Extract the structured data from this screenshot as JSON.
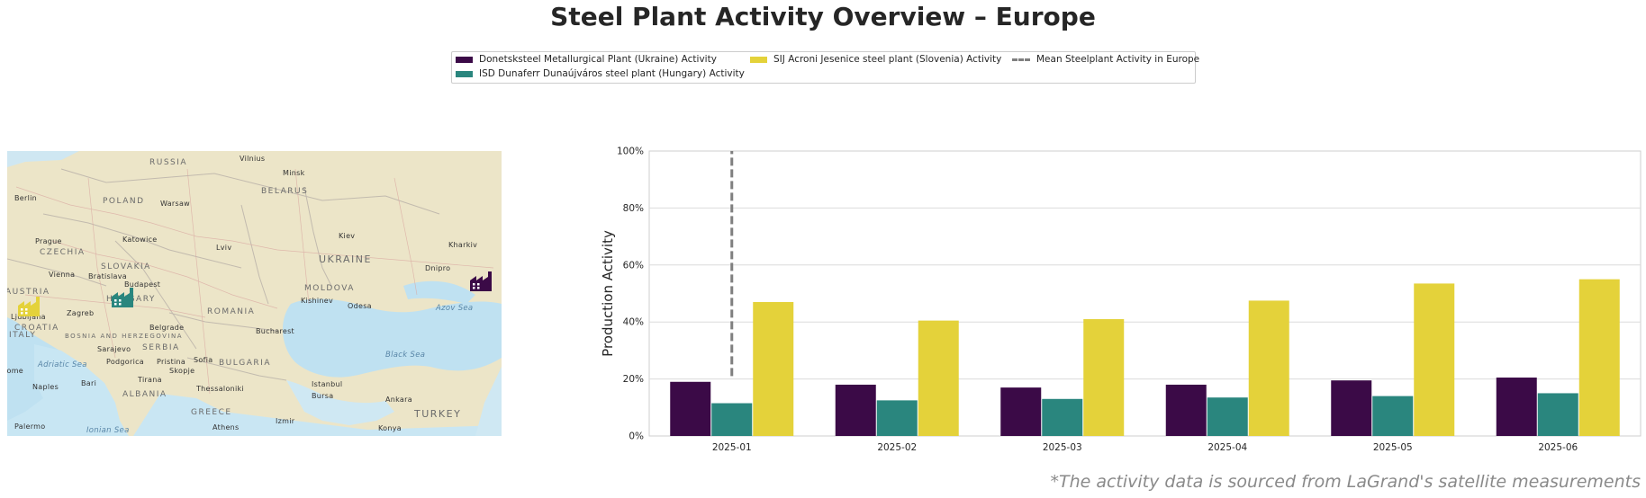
{
  "title": "Steel Plant Activity Overview – Europe",
  "footnote": "*The activity data is sourced from LaGrand's satellite measurements",
  "legend": [
    {
      "label": "Donetsksteel Metallurgical Plant (Ukraine) Activity",
      "color": "#3b0a47",
      "kind": "bar"
    },
    {
      "label": "ISD Dunaferr Dunaújváros steel plant (Hungary) Activity",
      "color": "#2a867e",
      "kind": "bar"
    },
    {
      "label": "SIJ Acroni Jesenice steel plant (Slovenia) Activity",
      "color": "#e4d23a",
      "kind": "bar"
    },
    {
      "label": "Mean Steelplant Activity in Europe",
      "color": "#7f7f7f",
      "kind": "dash"
    }
  ],
  "map": {
    "labels": [
      {
        "text": "RUSSIA",
        "kind": "country"
      },
      {
        "text": "Vilnius",
        "kind": "city"
      },
      {
        "text": "Minsk",
        "kind": "city"
      },
      {
        "text": "BELARUS",
        "kind": "country"
      },
      {
        "text": "Berlin",
        "kind": "city"
      },
      {
        "text": "POLAND",
        "kind": "country"
      },
      {
        "text": "Warsaw",
        "kind": "city"
      },
      {
        "text": "Katowice",
        "kind": "city"
      },
      {
        "text": "Lviv",
        "kind": "city"
      },
      {
        "text": "Kiev",
        "kind": "city"
      },
      {
        "text": "Kharkiv",
        "kind": "city"
      },
      {
        "text": "Prague",
        "kind": "city"
      },
      {
        "text": "CZECHIA",
        "kind": "country"
      },
      {
        "text": "UKRAINE",
        "kind": "country"
      },
      {
        "text": "SLOVAKIA",
        "kind": "country"
      },
      {
        "text": "Vienna",
        "kind": "city"
      },
      {
        "text": "Bratislava",
        "kind": "city"
      },
      {
        "text": "Budapest",
        "kind": "city"
      },
      {
        "text": "Dnipro",
        "kind": "city"
      },
      {
        "text": "AUSTRIA",
        "kind": "country"
      },
      {
        "text": "HUNGARY",
        "kind": "country"
      },
      {
        "text": "MOLDOVA",
        "kind": "country"
      },
      {
        "text": "Kishinev",
        "kind": "city"
      },
      {
        "text": "Odesa",
        "kind": "city"
      },
      {
        "text": "Azov Sea",
        "kind": "sea"
      },
      {
        "text": "Ljubljana",
        "kind": "city"
      },
      {
        "text": "Zagreb",
        "kind": "city"
      },
      {
        "text": "ROMANIA",
        "kind": "country"
      },
      {
        "text": "CROATIA",
        "kind": "country"
      },
      {
        "text": "BOSNIA AND HERZEGOVINA",
        "kind": "country"
      },
      {
        "text": "Belgrade",
        "kind": "city"
      },
      {
        "text": "SERBIA",
        "kind": "country"
      },
      {
        "text": "Bucharest",
        "kind": "city"
      },
      {
        "text": "Sarajevo",
        "kind": "city"
      },
      {
        "text": "Podgorica",
        "kind": "city"
      },
      {
        "text": "Pristina",
        "kind": "city"
      },
      {
        "text": "Sofia",
        "kind": "city"
      },
      {
        "text": "BULGARIA",
        "kind": "country"
      },
      {
        "text": "Black Sea",
        "kind": "sea"
      },
      {
        "text": "Adriatic Sea",
        "kind": "sea"
      },
      {
        "text": "Skopje",
        "kind": "city"
      },
      {
        "text": "Tirana",
        "kind": "city"
      },
      {
        "text": "ALBANIA",
        "kind": "country"
      },
      {
        "text": "Bari",
        "kind": "city"
      },
      {
        "text": "Naples",
        "kind": "city"
      },
      {
        "text": "Thessaloniki",
        "kind": "city"
      },
      {
        "text": "Istanbul",
        "kind": "city"
      },
      {
        "text": "Bursa",
        "kind": "city"
      },
      {
        "text": "Ankara",
        "kind": "city"
      },
      {
        "text": "GREECE",
        "kind": "country"
      },
      {
        "text": "TURKEY",
        "kind": "country"
      },
      {
        "text": "Izmir",
        "kind": "city"
      },
      {
        "text": "Athens",
        "kind": "city"
      },
      {
        "text": "Palermo",
        "kind": "city"
      },
      {
        "text": "Ionian Sea",
        "kind": "sea"
      },
      {
        "text": "Konya",
        "kind": "city"
      },
      {
        "text": "ITALY",
        "kind": "country"
      },
      {
        "text": "Rome",
        "kind": "city"
      }
    ],
    "markers": [
      {
        "plant": "Donetsksteel Metallurgical Plant (Ukraine)",
        "icon": "factory-icon",
        "color": "#3b0a47"
      },
      {
        "plant": "ISD Dunaferr Dunaújváros steel plant (Hungary)",
        "icon": "factory-icon",
        "color": "#2a867e"
      },
      {
        "plant": "SIJ Acroni Jesenice steel plant (Slovenia)",
        "icon": "factory-icon",
        "color": "#e4d23a"
      }
    ]
  },
  "chart_data": {
    "type": "bar",
    "categories": [
      "2025-01",
      "2025-02",
      "2025-03",
      "2025-04",
      "2025-05",
      "2025-06"
    ],
    "series": [
      {
        "name": "Donetsksteel Metallurgical Plant (Ukraine) Activity",
        "color": "#3b0a47",
        "values": [
          19,
          18,
          17,
          18,
          19.5,
          20.5
        ]
      },
      {
        "name": "ISD Dunaferr Dunaújváros steel plant (Hungary) Activity",
        "color": "#2a867e",
        "values": [
          11.5,
          12.5,
          13,
          13.5,
          14,
          15
        ]
      },
      {
        "name": "SIJ Acroni Jesenice steel plant (Slovenia) Activity",
        "color": "#e4d23a",
        "values": [
          47,
          40.5,
          41,
          47.5,
          53.5,
          55
        ]
      }
    ],
    "mean_line": {
      "name": "Mean Steelplant Activity in Europe",
      "category": "2025-01",
      "y_from": 21,
      "y_to": 100,
      "color": "#7f7f7f"
    },
    "ylabel": "Production Activity",
    "xlabel": "",
    "ylim": [
      0,
      100
    ],
    "yticks": [
      0,
      20,
      40,
      60,
      80,
      100
    ],
    "ytick_labels": [
      "0%",
      "20%",
      "40%",
      "60%",
      "80%",
      "100%"
    ],
    "grid": true
  }
}
